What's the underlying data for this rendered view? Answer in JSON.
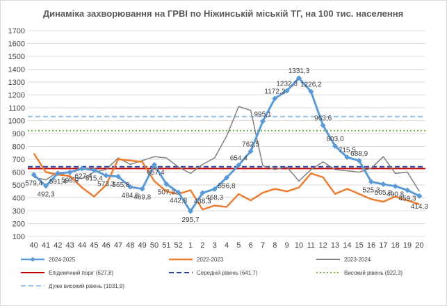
{
  "chart_data": {
    "type": "line",
    "title": "Динаміка захворювання на ГРВІ по Ніжинській міській ТГ, на 100 тис. населення",
    "categories": [
      "40",
      "41",
      "42",
      "43",
      "44",
      "45",
      "46",
      "47",
      "48",
      "49",
      "50",
      "51",
      "52",
      "1",
      "2",
      "3",
      "4",
      "5",
      "6",
      "7",
      "8",
      "9",
      "10",
      "11",
      "12",
      "13",
      "14",
      "15",
      "16",
      "17",
      "18",
      "19",
      "20"
    ],
    "ylim": [
      100,
      1700
    ],
    "yticks": [
      "100",
      "200",
      "300",
      "400",
      "500",
      "600",
      "700",
      "800",
      "900",
      "1000",
      "1100",
      "1200",
      "1300",
      "1400",
      "1500",
      "1600",
      "1700"
    ],
    "grid": "horizontal",
    "legend_position": "bottom",
    "series": [
      {
        "name": "2024-2025",
        "color": "#5b9bd5",
        "marker": "diamond",
        "values": [
          579.4,
          492.3,
          591.4,
          598.9,
          627.4,
          615.4,
          573.3,
          565.8,
          484.8,
          469.8,
          657.4,
          507.3,
          442.8,
          295.7,
          438.3,
          468.3,
          556.8,
          654.4,
          762.5,
          995.1,
          1172.2,
          1232.3,
          1331.3,
          1226.2,
          963.6,
          803.0,
          715.5,
          688.9,
          525.3,
          505.8,
          490.8,
          459.3,
          414.3
        ],
        "labels": [
          "579,4",
          "492,3",
          "591,4",
          "598,9",
          "627,4",
          "615,4",
          "573,3",
          "565,8",
          "484,8",
          "469,8",
          "657,4",
          "507,3",
          "442,8",
          "295,7",
          "438,3",
          "468,3",
          "556,8",
          "654,4",
          "762,5",
          "995,1",
          "1172,2",
          "1232,3",
          "1331,3",
          "1226,2",
          "963,6",
          "803,0",
          "715,5",
          "688,9",
          "525,3",
          "505,8",
          "490,8",
          "459,3",
          "414,3"
        ]
      },
      {
        "name": "2022-2023",
        "color": "#ed7d31",
        "values": [
          745,
          600,
          580,
          570,
          480,
          410,
          500,
          700,
          690,
          680,
          530,
          450,
          430,
          460,
          310,
          340,
          330,
          430,
          380,
          440,
          470,
          450,
          480,
          590,
          560,
          430,
          470,
          430,
          390,
          370,
          410,
          380,
          350
        ]
      },
      {
        "name": "2023-2024",
        "color": "#808080",
        "values": [
          560,
          540,
          600,
          560,
          550,
          600,
          620,
          710,
          660,
          690,
          720,
          710,
          640,
          590,
          660,
          710,
          880,
          1110,
          1080,
          650,
          620,
          640,
          530,
          620,
          680,
          620,
          610,
          600,
          630,
          720,
          590,
          600,
          450
        ]
      },
      {
        "name": "Епідемічний поріг (627,8)",
        "color": "#c00000",
        "constant": 627.8,
        "style": "solid"
      },
      {
        "name": "Середній рівень (641,7)",
        "color": "#1f3ea8",
        "constant": 641.7,
        "style": "dashed"
      },
      {
        "name": "Високий рівень (922,3)",
        "color": "#70ad47",
        "constant": 922.3,
        "style": "dotted"
      },
      {
        "name": "Дуже високий рівень (1031,9)",
        "color": "#9dc3e6",
        "constant": 1031.9,
        "style": "dashed"
      }
    ]
  }
}
